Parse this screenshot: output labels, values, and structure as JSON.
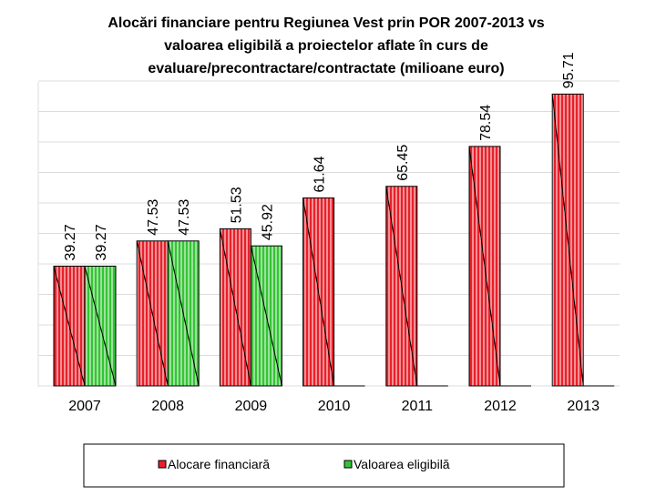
{
  "chart_data": {
    "type": "bar",
    "title_lines": [
      "Alocări financiare pentru Regiunea Vest prin POR 2007-2013 vs",
      "valoarea eligibilă a proiectelor aflate în curs de",
      "evaluare/precontractare/contractate (milioane euro)"
    ],
    "categories": [
      "2007",
      "2008",
      "2009",
      "2010",
      "2011",
      "2012",
      "2013"
    ],
    "series": [
      {
        "name": "Alocare financiară",
        "color": "#e8202a",
        "values": [
          39.27,
          47.53,
          51.53,
          61.64,
          65.45,
          78.54,
          95.71
        ]
      },
      {
        "name": "Valoarea eligibilă",
        "color": "#35c435",
        "values": [
          39.27,
          47.53,
          45.92,
          0,
          0,
          0,
          0
        ]
      }
    ],
    "data_labels": [
      [
        "39.27",
        "47.53",
        "51.53",
        "61.64",
        "65.45",
        "78.54",
        "95.71"
      ],
      [
        "39.27",
        "47.53",
        "45.92",
        null,
        null,
        null,
        null
      ]
    ],
    "ylim": [
      0,
      100
    ],
    "grid": true,
    "legend_position": "bottom"
  }
}
